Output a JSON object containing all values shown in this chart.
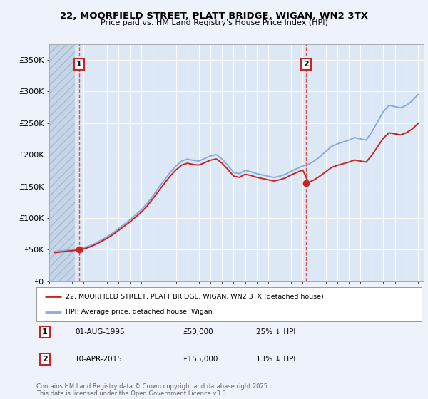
{
  "title_line1": "22, MOORFIELD STREET, PLATT BRIDGE, WIGAN, WN2 3TX",
  "title_line2": "Price paid vs. HM Land Registry's House Price Index (HPI)",
  "background_color": "#eef2fa",
  "plot_bg_color": "#dce8f5",
  "legend_label_red": "22, MOORFIELD STREET, PLATT BRIDGE, WIGAN, WN2 3TX (detached house)",
  "legend_label_blue": "HPI: Average price, detached house, Wigan",
  "annotation1_date": "01-AUG-1995",
  "annotation1_price": "£50,000",
  "annotation1_hpi": "25% ↓ HPI",
  "annotation2_date": "10-APR-2015",
  "annotation2_price": "£155,000",
  "annotation2_hpi": "13% ↓ HPI",
  "footnote": "Contains HM Land Registry data © Crown copyright and database right 2025.\nThis data is licensed under the Open Government Licence v3.0.",
  "ylim_min": 0,
  "ylim_max": 375000,
  "yticks": [
    0,
    50000,
    100000,
    150000,
    200000,
    250000,
    300000,
    350000
  ],
  "ytick_labels": [
    "£0",
    "£50K",
    "£100K",
    "£150K",
    "£200K",
    "£250K",
    "£300K",
    "£350K"
  ],
  "sale1_x": 1995.58,
  "sale1_y": 50000,
  "sale2_x": 2015.27,
  "sale2_y": 155000,
  "hpi_years": [
    1993.5,
    1994.0,
    1994.5,
    1995.0,
    1995.5,
    1996.0,
    1996.5,
    1997.0,
    1997.5,
    1998.0,
    1998.5,
    1999.0,
    1999.5,
    2000.0,
    2000.5,
    2001.0,
    2001.5,
    2002.0,
    2002.5,
    2003.0,
    2003.5,
    2004.0,
    2004.5,
    2005.0,
    2005.5,
    2006.0,
    2006.5,
    2007.0,
    2007.5,
    2008.0,
    2008.5,
    2009.0,
    2009.5,
    2010.0,
    2010.5,
    2011.0,
    2011.5,
    2012.0,
    2012.5,
    2013.0,
    2013.5,
    2014.0,
    2014.5,
    2015.0,
    2015.5,
    2016.0,
    2016.5,
    2017.0,
    2017.5,
    2018.0,
    2018.5,
    2019.0,
    2019.5,
    2020.0,
    2020.5,
    2021.0,
    2021.5,
    2022.0,
    2022.5,
    2023.0,
    2023.5,
    2024.0,
    2024.5,
    2025.0
  ],
  "hpi_values": [
    47000,
    48000,
    49000,
    50000,
    51500,
    53000,
    56000,
    60000,
    65000,
    70000,
    76000,
    83000,
    90000,
    97000,
    105000,
    113000,
    123000,
    135000,
    148000,
    160000,
    172000,
    182000,
    190000,
    193000,
    191000,
    190000,
    194000,
    198000,
    200000,
    193000,
    183000,
    172000,
    170000,
    175000,
    173000,
    170000,
    168000,
    166000,
    164000,
    166000,
    169000,
    174000,
    178000,
    182000,
    185000,
    190000,
    197000,
    205000,
    213000,
    217000,
    220000,
    223000,
    227000,
    225000,
    223000,
    236000,
    252000,
    268000,
    278000,
    276000,
    274000,
    278000,
    285000,
    295000
  ],
  "xlim_min": 1993.0,
  "xlim_max": 2025.5,
  "hatch_end_x": 1995.25
}
